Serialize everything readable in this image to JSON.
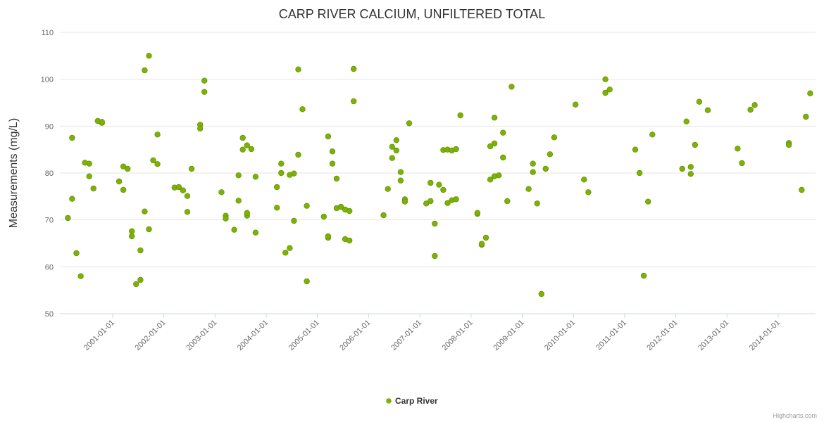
{
  "credits": {
    "label": "Highcharts.com"
  },
  "colors": {
    "point_fill": "#7cb106",
    "point_stroke": "#679405",
    "grid": "#e6e6e6",
    "axis_line": "#ccd6eb",
    "tick_text": "#666666"
  },
  "chart_data": {
    "type": "scatter",
    "title": "CARP RIVER CALCIUM, UNFILTERED TOTAL",
    "xlabel": "",
    "ylabel": "Measurements (mg/L)",
    "ylim": [
      50,
      110
    ],
    "y_ticks": [
      50,
      60,
      70,
      80,
      90,
      100,
      110
    ],
    "x_tick_labels": [
      "2001-01-01",
      "2002-01-01",
      "2003-01-01",
      "2004-01-01",
      "2005-01-01",
      "2006-01-01",
      "2007-01-01",
      "2008-01-01",
      "2009-01-01",
      "2010-01-01",
      "2011-01-01",
      "2012-01-01",
      "2013-01-01",
      "2014-01-01"
    ],
    "grid": true,
    "legend_position": "bottom",
    "series": [
      {
        "name": "Carp River",
        "color": "#7cb106",
        "points": [
          [
            "2000-02",
            70.4
          ],
          [
            "2000-03",
            74.5
          ],
          [
            "2000-03",
            87.5
          ],
          [
            "2000-04",
            62.9
          ],
          [
            "2000-05",
            58.0
          ],
          [
            "2000-06",
            82.2
          ],
          [
            "2000-07",
            79.3
          ],
          [
            "2000-07",
            82.0
          ],
          [
            "2000-08",
            76.7
          ],
          [
            "2000-09",
            91.1
          ],
          [
            "2000-10",
            90.7
          ],
          [
            "2000-10",
            90.9
          ],
          [
            "2001-02",
            78.2
          ],
          [
            "2001-03",
            76.4
          ],
          [
            "2001-03",
            81.4
          ],
          [
            "2001-04",
            80.9
          ],
          [
            "2001-05",
            67.6
          ],
          [
            "2001-05",
            66.5
          ],
          [
            "2001-06",
            56.3
          ],
          [
            "2001-07",
            57.2
          ],
          [
            "2001-07",
            63.5
          ],
          [
            "2001-08",
            71.8
          ],
          [
            "2001-08",
            101.9
          ],
          [
            "2001-09",
            68.0
          ],
          [
            "2001-09",
            105.0
          ],
          [
            "2001-10",
            82.7
          ],
          [
            "2001-11",
            81.9
          ],
          [
            "2001-11",
            88.2
          ],
          [
            "2002-03",
            76.9
          ],
          [
            "2002-04",
            77.0
          ],
          [
            "2002-05",
            76.3
          ],
          [
            "2002-06",
            71.7
          ],
          [
            "2002-06",
            75.1
          ],
          [
            "2002-07",
            80.9
          ],
          [
            "2002-09",
            90.3
          ],
          [
            "2002-09",
            89.5
          ],
          [
            "2002-10",
            99.7
          ],
          [
            "2002-10",
            97.3
          ],
          [
            "2003-02",
            75.9
          ],
          [
            "2003-03",
            70.9
          ],
          [
            "2003-03",
            70.3
          ],
          [
            "2003-05",
            67.9
          ],
          [
            "2003-06",
            79.5
          ],
          [
            "2003-06",
            74.1
          ],
          [
            "2003-07",
            87.5
          ],
          [
            "2003-07",
            85.0
          ],
          [
            "2003-08",
            70.9
          ],
          [
            "2003-08",
            85.9
          ],
          [
            "2003-08",
            71.5
          ],
          [
            "2003-09",
            85.1
          ],
          [
            "2003-10",
            67.3
          ],
          [
            "2003-10",
            79.2
          ],
          [
            "2004-03",
            77.0
          ],
          [
            "2004-03",
            72.6
          ],
          [
            "2004-04",
            82.0
          ],
          [
            "2004-04",
            80.0
          ],
          [
            "2004-05",
            63.0
          ],
          [
            "2004-06",
            64.0
          ],
          [
            "2004-06",
            79.6
          ],
          [
            "2004-07",
            69.8
          ],
          [
            "2004-07",
            79.9
          ],
          [
            "2004-08",
            83.9
          ],
          [
            "2004-08",
            102.1
          ],
          [
            "2004-09",
            93.6
          ],
          [
            "2004-10",
            73.0
          ],
          [
            "2004-10",
            56.9
          ],
          [
            "2005-02",
            70.7
          ],
          [
            "2005-03",
            66.2
          ],
          [
            "2005-03",
            87.8
          ],
          [
            "2005-03",
            66.5
          ],
          [
            "2005-04",
            82.0
          ],
          [
            "2005-04",
            84.6
          ],
          [
            "2005-05",
            78.8
          ],
          [
            "2005-05",
            72.5
          ],
          [
            "2005-06",
            72.8
          ],
          [
            "2005-07",
            65.9
          ],
          [
            "2005-07",
            72.2
          ],
          [
            "2005-08",
            65.6
          ],
          [
            "2005-08",
            71.9
          ],
          [
            "2005-09",
            95.3
          ],
          [
            "2005-09",
            102.2
          ],
          [
            "2006-04",
            71.0
          ],
          [
            "2006-05",
            76.6
          ],
          [
            "2006-06",
            85.6
          ],
          [
            "2006-06",
            83.2
          ],
          [
            "2006-07",
            87.0
          ],
          [
            "2006-07",
            84.8
          ],
          [
            "2006-08",
            78.4
          ],
          [
            "2006-08",
            80.2
          ],
          [
            "2006-09",
            74.4
          ],
          [
            "2006-09",
            73.9
          ],
          [
            "2006-10",
            90.6
          ],
          [
            "2007-02",
            73.5
          ],
          [
            "2007-03",
            74.0
          ],
          [
            "2007-03",
            77.9
          ],
          [
            "2007-04",
            69.2
          ],
          [
            "2007-04",
            62.3
          ],
          [
            "2007-05",
            77.5
          ],
          [
            "2007-06",
            84.9
          ],
          [
            "2007-06",
            76.4
          ],
          [
            "2007-07",
            85.0
          ],
          [
            "2007-07",
            73.6
          ],
          [
            "2007-08",
            84.8
          ],
          [
            "2007-08",
            74.2
          ],
          [
            "2007-09",
            85.1
          ],
          [
            "2007-09",
            74.4
          ],
          [
            "2007-10",
            92.3
          ],
          [
            "2008-02",
            71.3
          ],
          [
            "2008-02",
            71.5
          ],
          [
            "2008-03",
            64.7
          ],
          [
            "2008-03",
            64.9
          ],
          [
            "2008-04",
            66.2
          ],
          [
            "2008-05",
            78.6
          ],
          [
            "2008-05",
            85.7
          ],
          [
            "2008-06",
            79.3
          ],
          [
            "2008-06",
            86.3
          ],
          [
            "2008-06",
            91.8
          ],
          [
            "2008-07",
            79.5
          ],
          [
            "2008-08",
            88.6
          ],
          [
            "2008-08",
            83.3
          ],
          [
            "2008-09",
            74.0
          ],
          [
            "2008-10",
            98.4
          ],
          [
            "2009-02",
            76.6
          ],
          [
            "2009-03",
            82.0
          ],
          [
            "2009-03",
            80.2
          ],
          [
            "2009-04",
            73.5
          ],
          [
            "2009-05",
            54.2
          ],
          [
            "2009-06",
            80.9
          ],
          [
            "2009-07",
            84.0
          ],
          [
            "2009-08",
            87.6
          ],
          [
            "2010-01",
            94.6
          ],
          [
            "2010-03",
            78.6
          ],
          [
            "2010-04",
            75.9
          ],
          [
            "2010-08",
            97.1
          ],
          [
            "2010-08",
            100.0
          ],
          [
            "2010-09",
            97.8
          ],
          [
            "2011-03",
            85.0
          ],
          [
            "2011-04",
            80.0
          ],
          [
            "2011-05",
            58.1
          ],
          [
            "2011-06",
            73.9
          ],
          [
            "2011-07",
            88.2
          ],
          [
            "2012-02",
            80.9
          ],
          [
            "2012-03",
            91.0
          ],
          [
            "2012-04",
            81.3
          ],
          [
            "2012-04",
            79.8
          ],
          [
            "2012-05",
            86.0
          ],
          [
            "2012-06",
            95.2
          ],
          [
            "2012-08",
            93.4
          ],
          [
            "2013-03",
            85.2
          ],
          [
            "2013-04",
            82.1
          ],
          [
            "2013-06",
            93.5
          ],
          [
            "2013-07",
            94.5
          ],
          [
            "2014-03",
            86.4
          ],
          [
            "2014-03",
            86.0
          ],
          [
            "2014-06",
            76.4
          ],
          [
            "2014-07",
            92.0
          ],
          [
            "2014-08",
            97.0
          ]
        ]
      }
    ]
  }
}
